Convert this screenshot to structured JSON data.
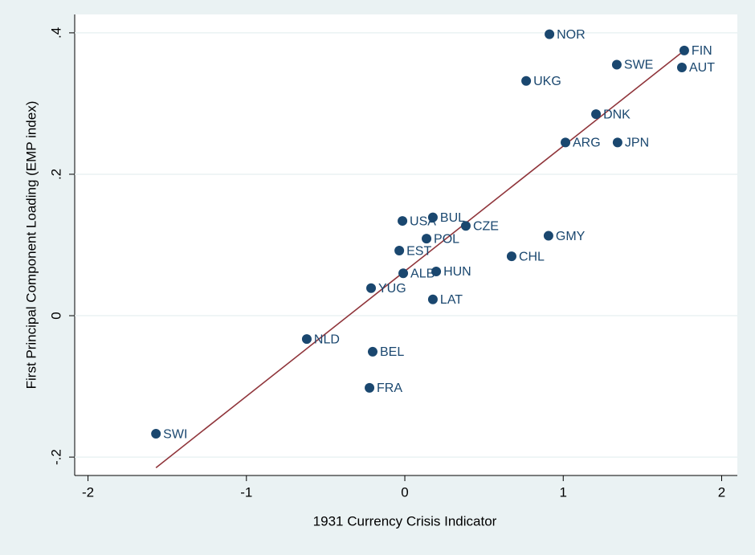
{
  "chart_data": {
    "type": "scatter",
    "x_label": "1931 Currency Crisis Indicator",
    "y_label": "First Principal Component Loading (EMP index)",
    "color": "#1a476f",
    "grid": true,
    "xlim": [
      -2.084,
      2.099
    ],
    "ylim": [
      -0.226,
      0.426
    ],
    "xticks": [
      -2,
      -1,
      0,
      1,
      2
    ],
    "yticks": [
      {
        "value": -0.2,
        "label": "-.2"
      },
      0,
      {
        "value": 0.2,
        "label": ".2"
      },
      {
        "value": 0.4,
        "label": ".4"
      }
    ],
    "labels": [
      "NOR",
      "FIN",
      "SWE",
      "AUT",
      "UKG",
      "DNK",
      "ARG",
      "JPN",
      "BUL",
      "USA",
      "CZE",
      "GMY",
      "POL",
      "EST",
      "CHL",
      "HUN",
      "ALB",
      "YUG",
      "LAT",
      "NLD",
      "BEL",
      "FRA",
      "SWI"
    ],
    "x": [
      0.913,
      1.764,
      1.338,
      1.749,
      0.766,
      1.207,
      1.014,
      1.343,
      0.177,
      -0.015,
      0.385,
      0.907,
      0.137,
      -0.035,
      0.674,
      0.198,
      -0.01,
      -0.213,
      0.177,
      -0.619,
      -0.203,
      -0.223,
      -1.571
    ],
    "y": [
      0.398,
      0.375,
      0.355,
      0.351,
      0.332,
      0.285,
      0.245,
      0.245,
      0.139,
      0.134,
      0.127,
      0.113,
      0.109,
      0.092,
      0.084,
      0.0625,
      0.06,
      0.039,
      0.023,
      -0.033,
      -0.051,
      -0.102,
      -0.167
    ],
    "fit_line": {
      "color": "#90353b",
      "x": [
        -1.571,
        1.764
      ],
      "y": [
        -0.215,
        0.375
      ]
    }
  }
}
